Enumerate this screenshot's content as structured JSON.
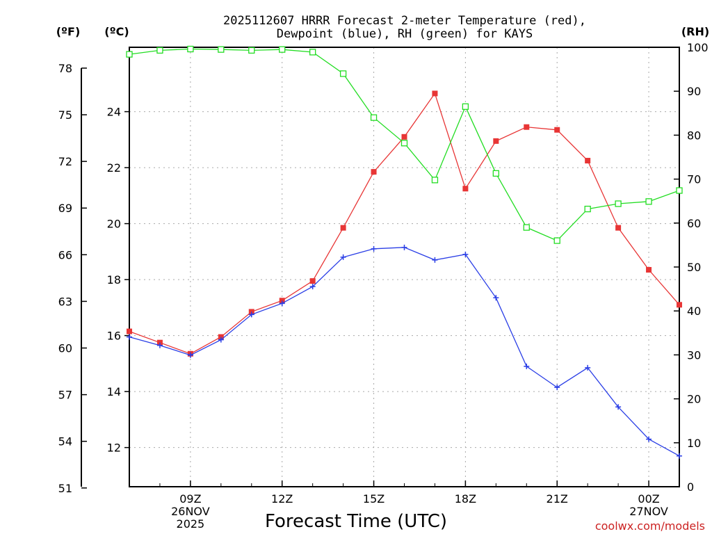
{
  "chart_data": {
    "type": "line",
    "title": [
      "2025112607 HRRR Forecast 2-meter Temperature (red),",
      "Dewpoint (blue), RH (green) for KAYS"
    ],
    "xlabel": "Forecast Time (UTC)",
    "credit": "coolwx.com/models",
    "units": {
      "fahrenheit": "(ºF)",
      "celsius": "(ºC)",
      "rh": "(RH)"
    },
    "x_hours": [
      7,
      8,
      9,
      10,
      11,
      12,
      13,
      14,
      15,
      16,
      17,
      18,
      19,
      20,
      21,
      22,
      23,
      24,
      25
    ],
    "x_range": [
      7,
      25
    ],
    "x_ticks": [
      {
        "hour": 9,
        "lines": [
          "09Z",
          "26NOV",
          "2025"
        ]
      },
      {
        "hour": 12,
        "lines": [
          "12Z"
        ]
      },
      {
        "hour": 15,
        "lines": [
          "15Z"
        ]
      },
      {
        "hour": 18,
        "lines": [
          "18Z"
        ]
      },
      {
        "hour": 21,
        "lines": [
          "21Z"
        ]
      },
      {
        "hour": 24,
        "lines": [
          "00Z",
          "27NOV"
        ]
      }
    ],
    "left_c_axis": {
      "range": [
        10.6,
        26.3
      ],
      "ticks": [
        12,
        14,
        16,
        18,
        20,
        22,
        24
      ]
    },
    "left_f_axis": {
      "ticks": [
        51,
        54,
        57,
        60,
        63,
        66,
        69,
        72,
        75,
        78
      ]
    },
    "right_rh_axis": {
      "range": [
        0,
        100
      ],
      "ticks": [
        0,
        10,
        20,
        30,
        40,
        50,
        60,
        70,
        80,
        90,
        100
      ]
    },
    "series": [
      {
        "name": "Temperature (°C)",
        "color": "#e83535",
        "marker": "filled-square",
        "axis": "celsius",
        "values": [
          16.15,
          15.75,
          15.35,
          15.95,
          16.85,
          17.25,
          17.95,
          19.85,
          21.85,
          23.1,
          24.65,
          21.25,
          22.95,
          23.45,
          23.35,
          22.25,
          19.85,
          18.35,
          17.1
        ]
      },
      {
        "name": "Dewpoint (°C)",
        "color": "#2a3ee6",
        "marker": "plus",
        "axis": "celsius",
        "values": [
          15.95,
          15.65,
          15.3,
          15.85,
          16.75,
          17.15,
          17.75,
          18.8,
          19.1,
          19.15,
          18.7,
          18.9,
          17.35,
          14.9,
          14.15,
          14.85,
          13.45,
          12.3,
          11.7
        ]
      },
      {
        "name": "RH (%)",
        "color": "#22dd22",
        "marker": "open-square",
        "axis": "rh",
        "values": [
          98.4,
          99.3,
          99.6,
          99.5,
          99.3,
          99.5,
          98.9,
          94.0,
          84.0,
          78.2,
          69.8,
          86.5,
          71.3,
          59.0,
          56.0,
          63.2,
          64.4,
          64.9,
          67.4
        ]
      }
    ],
    "grid": true
  }
}
